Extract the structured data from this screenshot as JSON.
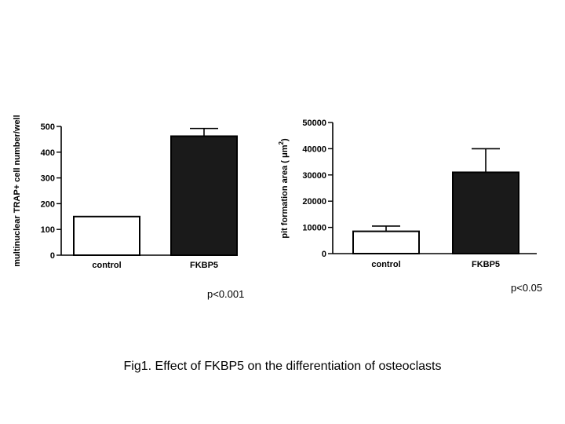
{
  "chart_data": [
    {
      "type": "bar",
      "categories": [
        "control",
        "FKBP5"
      ],
      "values": [
        150,
        462
      ],
      "errors": [
        0,
        30
      ],
      "bar_colors": [
        "#ffffff",
        "#1a1a1a"
      ],
      "ylabel": "multinuclear TRAP+ cell number/well",
      "ylim": [
        0,
        500
      ],
      "yticks": [
        "0",
        "100",
        "200",
        "300",
        "400",
        "500"
      ],
      "ytick_values": [
        0,
        100,
        200,
        300,
        400,
        500
      ],
      "annotation": "p<0.001"
    },
    {
      "type": "bar",
      "categories": [
        "control",
        "FKBP5"
      ],
      "values": [
        8500,
        31000
      ],
      "errors": [
        2000,
        9000
      ],
      "bar_colors": [
        "#ffffff",
        "#1a1a1a"
      ],
      "ylabel_prefix": "pit formation area ( ",
      "ylabel_mu": "μm",
      "ylabel_sup": "2",
      "ylabel_suffix": ")",
      "ylim": [
        0,
        50000
      ],
      "yticks": [
        "0",
        "10000",
        "20000",
        "30000",
        "40000",
        "50000"
      ],
      "ytick_values": [
        0,
        10000,
        20000,
        30000,
        40000,
        50000
      ],
      "annotation": "p<0.05"
    }
  ],
  "caption": "Fig1. Effect of FKBP5 on the differentiation of osteoclasts"
}
